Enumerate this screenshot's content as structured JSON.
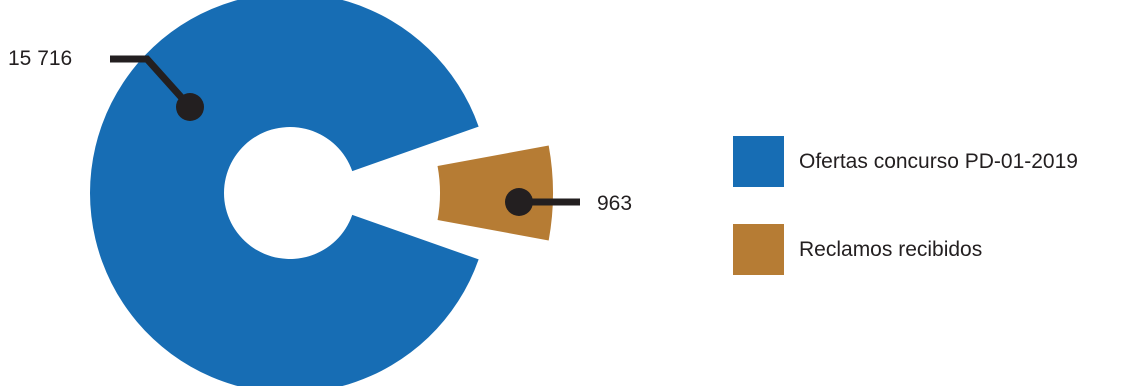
{
  "chart_data": {
    "type": "pie",
    "labels": [
      "Ofertas concurso PD-01-2019",
      "Reclamos recibidos"
    ],
    "values": [
      15716,
      963
    ],
    "value_labels": [
      "15 716",
      "963"
    ],
    "colors": [
      "#176db4",
      "#b67c34"
    ],
    "legend_position": "right",
    "donut": true
  },
  "legend": {
    "items": [
      {
        "label": "Ofertas concurso PD-01-2019",
        "color": "#176db4"
      },
      {
        "label": "Reclamos recibidos",
        "color": "#b67c34"
      }
    ]
  }
}
